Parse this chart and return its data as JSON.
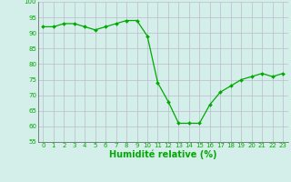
{
  "x": [
    0,
    1,
    2,
    3,
    4,
    5,
    6,
    7,
    8,
    9,
    10,
    11,
    12,
    13,
    14,
    15,
    16,
    17,
    18,
    19,
    20,
    21,
    22,
    23
  ],
  "y": [
    92,
    92,
    93,
    93,
    92,
    91,
    92,
    93,
    94,
    94,
    89,
    74,
    68,
    61,
    61,
    61,
    67,
    71,
    73,
    75,
    76,
    77,
    76,
    77
  ],
  "line_color": "#00aa00",
  "marker_color": "#00aa00",
  "bg_color": "#d4eeea",
  "grid_color": "#bbbbcc",
  "xlabel": "Humidité relative (%)",
  "xlabel_color": "#00aa00",
  "ylim": [
    55,
    100
  ],
  "yticks": [
    55,
    60,
    65,
    70,
    75,
    80,
    85,
    90,
    95,
    100
  ],
  "xticks": [
    0,
    1,
    2,
    3,
    4,
    5,
    6,
    7,
    8,
    9,
    10,
    11,
    12,
    13,
    14,
    15,
    16,
    17,
    18,
    19,
    20,
    21,
    22,
    23
  ],
  "tick_color": "#00aa00",
  "tick_fontsize": 5.0,
  "xlabel_fontsize": 7.0
}
